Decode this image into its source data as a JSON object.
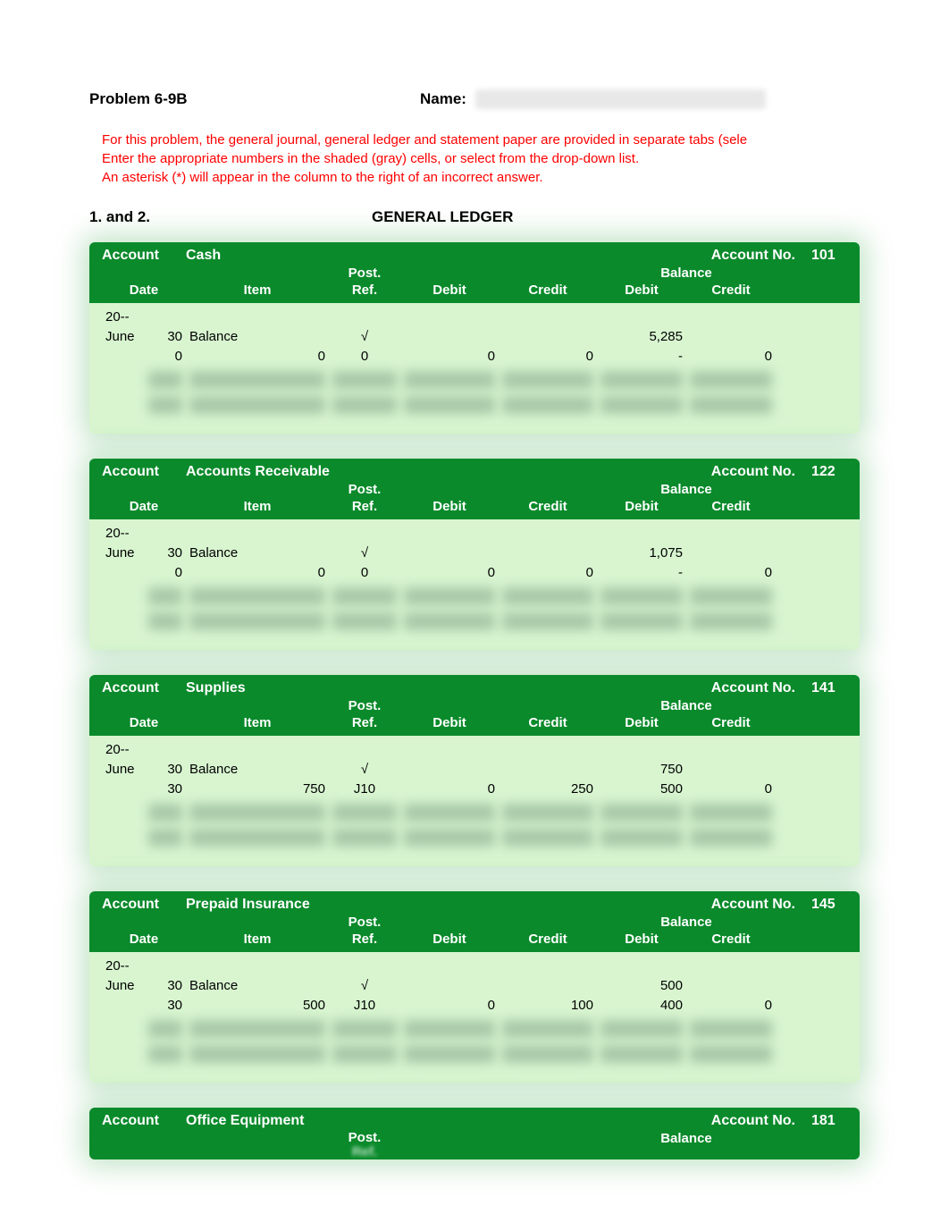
{
  "header": {
    "problem_label": "Problem 6-9B",
    "name_label": "Name:"
  },
  "instructions": {
    "line1": "For this problem, the general journal, general ledger and statement paper are provided in separate tabs (sele",
    "line2": "Enter the appropriate numbers in the shaded (gray) cells, or select from the drop-down list.",
    "line3": "An asterisk (*) will appear in the column to the right of an incorrect answer."
  },
  "section": {
    "number": "1. and 2.",
    "title": "GENERAL LEDGER"
  },
  "labels": {
    "account": "Account",
    "account_no": "Account No.",
    "balance": "Balance",
    "post_ref": "Post.\nRef.",
    "date": "Date",
    "item": "Item",
    "debit": "Debit",
    "credit": "Credit"
  },
  "colors": {
    "header_bg": "#0a8a2b",
    "body_bg": "#d8f5d0",
    "instructions_text": "#ff0000"
  },
  "accounts": [
    {
      "name": "Cash",
      "number": "101",
      "year": "20--",
      "rows": [
        {
          "month": "June",
          "day": "30",
          "item": "Balance",
          "item_num": "",
          "ref": "√",
          "debit": "",
          "credit": "",
          "bal_debit": "5,285",
          "bal_credit": ""
        },
        {
          "month": "",
          "day": "0",
          "item": "",
          "item_num": "0",
          "ref": "0",
          "debit": "0",
          "credit": "0",
          "bal_debit": "-",
          "bal_credit": "0"
        }
      ],
      "blurred_rows": 2
    },
    {
      "name": "Accounts Receivable",
      "number": "122",
      "year": "20--",
      "rows": [
        {
          "month": "June",
          "day": "30",
          "item": "Balance",
          "item_num": "",
          "ref": "√",
          "debit": "",
          "credit": "",
          "bal_debit": "1,075",
          "bal_credit": ""
        },
        {
          "month": "",
          "day": "0",
          "item": "",
          "item_num": "0",
          "ref": "0",
          "debit": "0",
          "credit": "0",
          "bal_debit": "-",
          "bal_credit": "0"
        }
      ],
      "blurred_rows": 2
    },
    {
      "name": "Supplies",
      "number": "141",
      "year": "20--",
      "rows": [
        {
          "month": "June",
          "day": "30",
          "item": "Balance",
          "item_num": "",
          "ref": "√",
          "debit": "",
          "credit": "",
          "bal_debit": "750",
          "bal_credit": ""
        },
        {
          "month": "",
          "day": "30",
          "item": "",
          "item_num": "750",
          "ref": "J10",
          "debit": "0",
          "credit": "250",
          "bal_debit": "500",
          "bal_credit": "0"
        }
      ],
      "blurred_rows": 2
    },
    {
      "name": "Prepaid Insurance",
      "number": "145",
      "year": "20--",
      "rows": [
        {
          "month": "June",
          "day": "30",
          "item": "Balance",
          "item_num": "",
          "ref": "√",
          "debit": "",
          "credit": "",
          "bal_debit": "500",
          "bal_credit": ""
        },
        {
          "month": "",
          "day": "30",
          "item": "",
          "item_num": "500",
          "ref": "J10",
          "debit": "0",
          "credit": "100",
          "bal_debit": "400",
          "bal_credit": "0"
        }
      ],
      "blurred_rows": 2
    }
  ],
  "partial_account": {
    "name": "Office Equipment",
    "number": "181",
    "post_label": "Post.",
    "ref_label": "Ref.",
    "balance_label": "Balance"
  }
}
